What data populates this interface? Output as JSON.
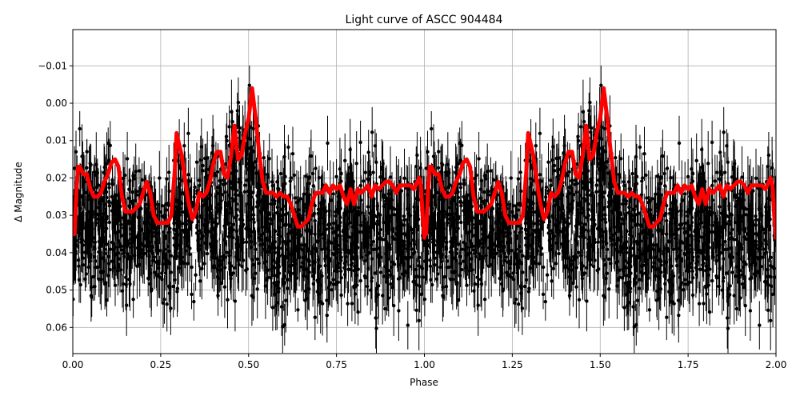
{
  "chart_data": {
    "type": "scatter",
    "title": "Light curve of ASCC 904484",
    "xlabel": "Phase",
    "ylabel": "Δ Magnitude",
    "xlim": [
      0.0,
      2.0
    ],
    "ylim": [
      0.067,
      -0.0197
    ],
    "y_inverted": true,
    "grid": true,
    "x_ticks": [
      0.0,
      0.25,
      0.5,
      0.75,
      1.0,
      1.25,
      1.5,
      1.75,
      2.0
    ],
    "x_tick_labels": [
      "0.00",
      "0.25",
      "0.50",
      "0.75",
      "1.00",
      "1.25",
      "1.50",
      "1.75",
      "2.00"
    ],
    "y_ticks": [
      -0.01,
      0.0,
      0.01,
      0.02,
      0.03,
      0.04,
      0.05,
      0.06
    ],
    "y_tick_labels": [
      "−0.01",
      "0.00",
      "0.01",
      "0.02",
      "0.03",
      "0.04",
      "0.05",
      "0.06"
    ],
    "colors": {
      "points": "#000000",
      "model": "#ff0000",
      "grid": "#b0b0b0"
    },
    "series": [
      {
        "kind": "errorbar-scatter",
        "color": "#000000",
        "note_period": 1.0,
        "envelope_phase": [
          0.0,
          0.05,
          0.1,
          0.15,
          0.2,
          0.25,
          0.3,
          0.35,
          0.4,
          0.45,
          0.5,
          0.55,
          0.6,
          0.65,
          0.7,
          0.75,
          0.8,
          0.85,
          0.9,
          0.95,
          1.0
        ],
        "envelope_low": [
          0.005,
          0.006,
          0.004,
          0.012,
          0.014,
          0.015,
          0.004,
          0.006,
          0.006,
          -0.004,
          -0.018,
          0.01,
          0.01,
          0.008,
          0.008,
          0.01,
          0.008,
          0.005,
          0.012,
          0.01,
          0.005
        ],
        "envelope_high": [
          0.062,
          0.058,
          0.058,
          0.058,
          0.05,
          0.06,
          0.058,
          0.055,
          0.058,
          0.06,
          0.06,
          0.058,
          0.066,
          0.062,
          0.066,
          0.062,
          0.066,
          0.062,
          0.06,
          0.064,
          0.062
        ]
      },
      {
        "kind": "model-line",
        "color": "#ff0000",
        "x": [
          0.0,
          0.005,
          0.01,
          0.015,
          0.02,
          0.03,
          0.04,
          0.05,
          0.06,
          0.07,
          0.08,
          0.09,
          0.1,
          0.11,
          0.12,
          0.13,
          0.14,
          0.15,
          0.16,
          0.17,
          0.18,
          0.19,
          0.2,
          0.21,
          0.22,
          0.23,
          0.24,
          0.25,
          0.26,
          0.27,
          0.28,
          0.29,
          0.295,
          0.3,
          0.305,
          0.31,
          0.32,
          0.33,
          0.34,
          0.35,
          0.36,
          0.37,
          0.38,
          0.39,
          0.4,
          0.41,
          0.42,
          0.43,
          0.44,
          0.45,
          0.46,
          0.47,
          0.48,
          0.49,
          0.5,
          0.51,
          0.515,
          0.52,
          0.53,
          0.54,
          0.55,
          0.56,
          0.57,
          0.58,
          0.59,
          0.6,
          0.61,
          0.62,
          0.63,
          0.64,
          0.65,
          0.66,
          0.67,
          0.68,
          0.69,
          0.7,
          0.71,
          0.72,
          0.73,
          0.74,
          0.75,
          0.76,
          0.77,
          0.78,
          0.79,
          0.8,
          0.81,
          0.82,
          0.83,
          0.84,
          0.85,
          0.86,
          0.87,
          0.88,
          0.89,
          0.9,
          0.91,
          0.92,
          0.93,
          0.94,
          0.95,
          0.96,
          0.97,
          0.98,
          0.985,
          0.99,
          0.995,
          1.0
        ],
        "y": [
          0.035,
          0.035,
          0.024,
          0.017,
          0.017,
          0.019,
          0.019,
          0.023,
          0.025,
          0.025,
          0.024,
          0.021,
          0.019,
          0.016,
          0.015,
          0.017,
          0.025,
          0.029,
          0.029,
          0.029,
          0.028,
          0.027,
          0.024,
          0.021,
          0.024,
          0.03,
          0.032,
          0.032,
          0.032,
          0.032,
          0.03,
          0.018,
          0.008,
          0.01,
          0.012,
          0.014,
          0.021,
          0.027,
          0.031,
          0.029,
          0.024,
          0.025,
          0.024,
          0.021,
          0.016,
          0.013,
          0.013,
          0.019,
          0.02,
          0.014,
          0.006,
          0.015,
          0.014,
          0.008,
          0.004,
          -0.004,
          0.0,
          0.004,
          0.013,
          0.021,
          0.024,
          0.024,
          0.024,
          0.025,
          0.024,
          0.025,
          0.025,
          0.027,
          0.03,
          0.033,
          0.033,
          0.032,
          0.031,
          0.027,
          0.024,
          0.024,
          0.024,
          0.022,
          0.024,
          0.022,
          0.023,
          0.022,
          0.025,
          0.027,
          0.023,
          0.027,
          0.023,
          0.024,
          0.023,
          0.022,
          0.025,
          0.022,
          0.023,
          0.022,
          0.021,
          0.021,
          0.022,
          0.024,
          0.022,
          0.022,
          0.022,
          0.022,
          0.023,
          0.021,
          0.02,
          0.022,
          0.03,
          0.036
        ]
      }
    ]
  }
}
